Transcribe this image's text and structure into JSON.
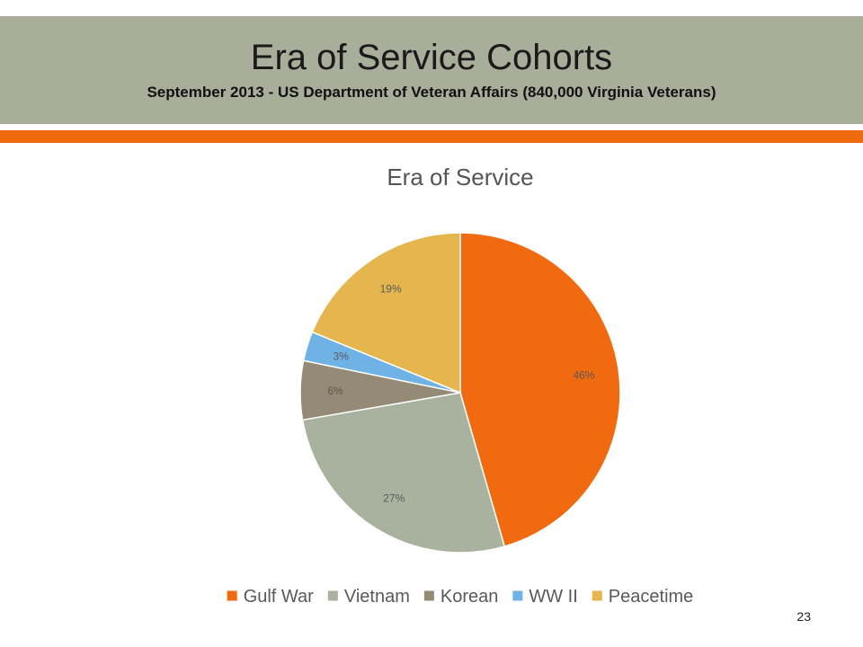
{
  "slide": {
    "title": "Era of Service Cohorts",
    "subtitle": "September 2013 - US Department of Veteran Affairs (840,000 Virginia Veterans)",
    "page_number": "23"
  },
  "colors": {
    "title_bar": "#a9ae9a",
    "accent_rule": "#f26a10"
  },
  "chart_data": {
    "type": "pie",
    "title": "Era of Service",
    "categories": [
      "Gulf War",
      "Vietnam",
      "Korean",
      "WW II",
      "Peacetime"
    ],
    "values": [
      46,
      27,
      6,
      3,
      19
    ],
    "labels": [
      "46%",
      "27%",
      "6%",
      "3%",
      "19%"
    ],
    "colors": [
      "#f26a10",
      "#a9b29e",
      "#948a75",
      "#6fb2e6",
      "#e5b64e"
    ],
    "legend_position": "bottom"
  }
}
